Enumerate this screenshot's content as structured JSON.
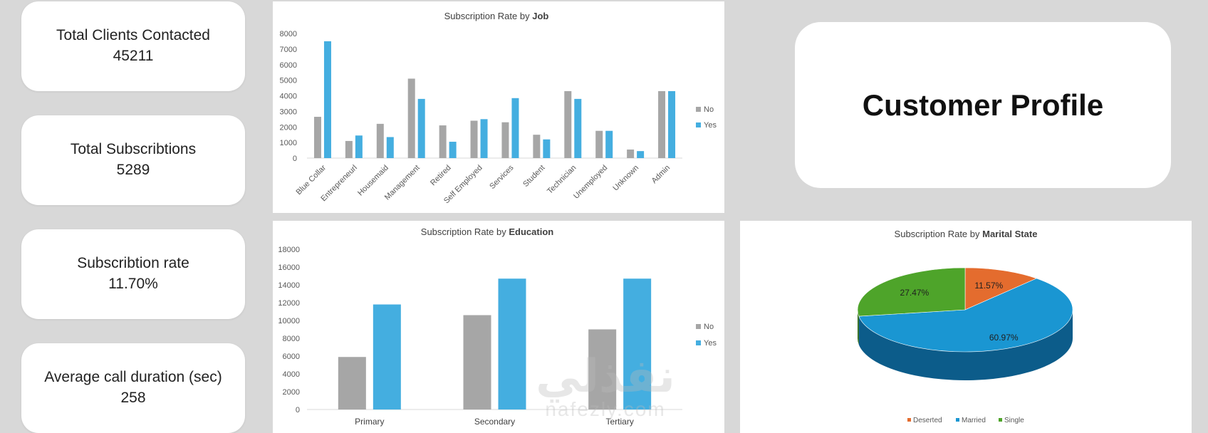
{
  "kpis": [
    {
      "label": "Total Clients Contacted",
      "value": "45211"
    },
    {
      "label": "Total Subscribtions",
      "value": "5289"
    },
    {
      "label": "Subscribtion rate",
      "value": "11.70%"
    },
    {
      "label": "Average call duration (sec)",
      "value": "258"
    }
  ],
  "header": {
    "title": "Customer Profile"
  },
  "watermark": {
    "arabic": "نفذلي",
    "latin": "nafezly.com"
  },
  "colors": {
    "no": "#a6a6a6",
    "yes": "#44aee0",
    "divorced": "#e46c2e",
    "married": "#1a96d2",
    "single": "#4ea42a"
  },
  "chart_data": [
    {
      "type": "bar",
      "title_prefix": "Subscription Rate by ",
      "title_bold": "Job",
      "categories": [
        "Blue Collar",
        "Entrepreneurl",
        "Housemaid",
        "Management",
        "Retired",
        "Self Employed",
        "Services",
        "Student",
        "Technician",
        "Unemployed",
        "Unknown",
        "Admin"
      ],
      "series": [
        {
          "name": "No",
          "values": [
            2650,
            1100,
            2200,
            5100,
            2100,
            2400,
            2300,
            1500,
            4300,
            1750,
            550,
            4300
          ]
        },
        {
          "name": "Yes",
          "values": [
            7500,
            1450,
            1350,
            3800,
            1050,
            2500,
            3850,
            1200,
            3800,
            1750,
            450,
            4300
          ]
        }
      ],
      "yticks": [
        "0",
        "1000",
        "2000",
        "3000",
        "4000",
        "5000",
        "6000",
        "7000",
        "8000"
      ],
      "ylim": [
        0,
        8000
      ],
      "legend": "right"
    },
    {
      "type": "bar",
      "title_prefix": "Subscription Rate by ",
      "title_bold": "Education",
      "categories": [
        "Primary",
        "Secondary",
        "Tertiary"
      ],
      "series": [
        {
          "name": "No",
          "values": [
            5900,
            10600,
            9000
          ]
        },
        {
          "name": "Yes",
          "values": [
            11800,
            14700,
            14700
          ]
        }
      ],
      "yticks": [
        "0",
        "2000",
        "4000",
        "6000",
        "8000",
        "10000",
        "12000",
        "14000",
        "16000",
        "18000"
      ],
      "ylim": [
        0,
        18000
      ],
      "legend": "right"
    },
    {
      "type": "pie",
      "title_prefix": "Subscription Rate by ",
      "title_bold": "Marital State",
      "slices": [
        {
          "name": "Deserted",
          "value": 11.57,
          "label": "11.57%"
        },
        {
          "name": "Married",
          "value": 60.97,
          "label": "60.97%"
        },
        {
          "name": "Single",
          "value": 27.47,
          "label": "27.47%"
        }
      ],
      "legend": "bottom"
    }
  ]
}
